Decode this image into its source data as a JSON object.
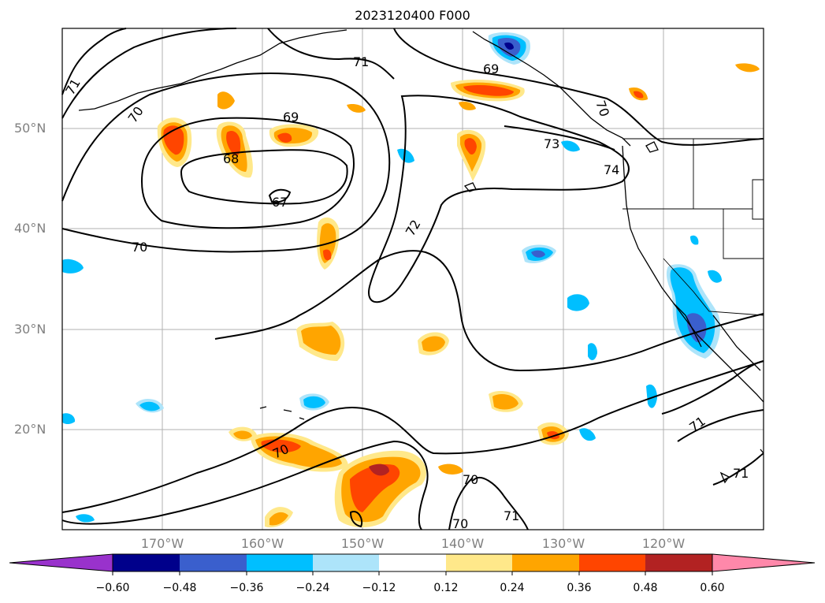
{
  "title": "2023120400 F000",
  "lat_labels": [
    "50°N",
    "40°N",
    "30°N",
    "20°N"
  ],
  "lon_labels": [
    "170°W",
    "160°W",
    "150°W",
    "140°W",
    "130°W",
    "120°W"
  ],
  "contour_labels": [
    "71",
    "70",
    "69",
    "68",
    "67",
    "70",
    "72",
    "69",
    "73",
    "74",
    "70",
    "71",
    "70",
    "70",
    "70",
    "71",
    "71"
  ],
  "colorbar": {
    "ticks": [
      "−0.60",
      "−0.48",
      "−0.36",
      "−0.24",
      "−0.12",
      "0.12",
      "0.24",
      "0.36",
      "0.48",
      "0.60"
    ],
    "colors": [
      "#9932cc",
      "#00008b",
      "#3a5fcd",
      "#00bfff",
      "#ade4fa",
      "#ffffff",
      "#ffe88a",
      "#ffa500",
      "#ff4500",
      "#b22222",
      "#ff88aa"
    ]
  },
  "colors": {
    "contour": "#000000",
    "grid": "#b0b0b0",
    "neg_light": "#ade4fa",
    "neg_mid": "#00bfff",
    "neg_dark": "#3a5fcd",
    "neg_deep": "#00008b",
    "pos_light": "#ffe88a",
    "pos_mid": "#ffa500",
    "pos_dark": "#ff4500",
    "pos_deep": "#b22222"
  }
}
